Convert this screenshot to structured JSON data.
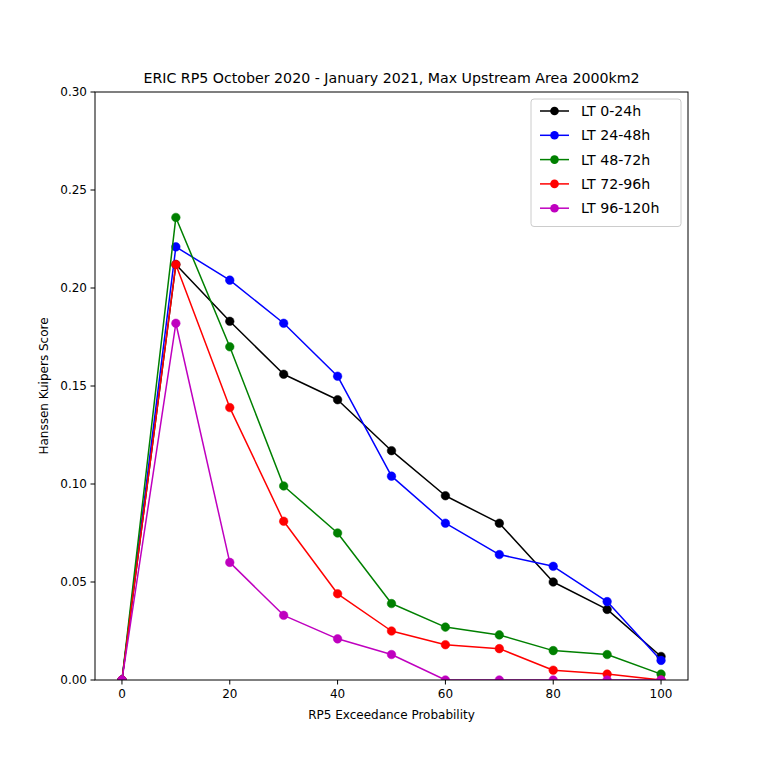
{
  "chart_data": {
    "type": "line",
    "title": "ERIC  RP5 October 2020 - January 2021, Max Upstream Area 2000km2",
    "x_label": "RP5 Exceedance Probability",
    "y_label": "Hanssen Kuipers Score",
    "x": [
      0,
      10,
      20,
      30,
      40,
      50,
      60,
      70,
      80,
      90,
      100
    ],
    "series": [
      {
        "name": "LT 0-24h",
        "color": "#000000",
        "marker": "circle",
        "values": [
          0,
          0.212,
          0.183,
          0.156,
          0.143,
          0.117,
          0.094,
          0.08,
          0.05,
          0.036,
          0.012
        ]
      },
      {
        "name": "LT 24-48h",
        "color": "#0000ff",
        "marker": "circle",
        "values": [
          0,
          0.221,
          0.204,
          0.182,
          0.155,
          0.104,
          0.08,
          0.064,
          0.058,
          0.04,
          0.01
        ]
      },
      {
        "name": "LT 48-72h",
        "color": "#008000",
        "marker": "circle",
        "values": [
          0,
          0.236,
          0.17,
          0.099,
          0.075,
          0.039,
          0.027,
          0.023,
          0.015,
          0.013,
          0.003
        ]
      },
      {
        "name": "LT 72-96h",
        "color": "#ff0000",
        "marker": "circle",
        "values": [
          0,
          0.212,
          0.139,
          0.081,
          0.044,
          0.025,
          0.018,
          0.016,
          0.005,
          0.003,
          0.0
        ]
      },
      {
        "name": "LT 96-120h",
        "color": "#bf00bf",
        "marker": "circle",
        "values": [
          0,
          0.182,
          0.06,
          0.033,
          0.021,
          0.013,
          0.0,
          0.0,
          0.0,
          0.0,
          0.0
        ]
      }
    ],
    "xlim": [
      -5,
      105
    ],
    "ylim": [
      0,
      0.3
    ],
    "xticks": [
      0,
      20,
      40,
      60,
      80,
      100
    ],
    "yticks": [
      {
        "value": 0,
        "label": "0.00"
      },
      {
        "value": 0.05,
        "label": "0.05"
      },
      {
        "value": 0.1,
        "label": "0.10"
      },
      {
        "value": 0.15,
        "label": "0.15"
      },
      {
        "value": 0.2,
        "label": "0.20"
      },
      {
        "value": 0.25,
        "label": "0.25"
      },
      {
        "value": 0.3,
        "label": "0.30"
      }
    ],
    "grid": false,
    "legend": "upper right"
  }
}
